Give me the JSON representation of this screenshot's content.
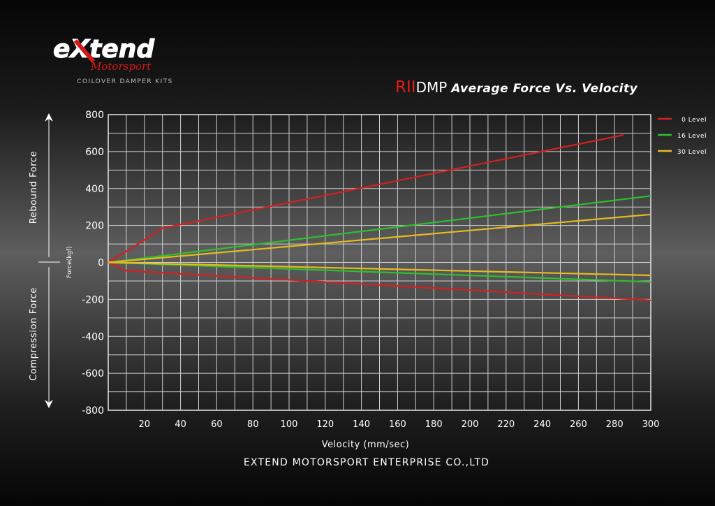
{
  "brand": {
    "logo_word": "eXtend",
    "logo_script": "Motorsport",
    "tagline": "COILOVER DAMPER KITS"
  },
  "title": {
    "prefix": "RII",
    "model": "DMP",
    "main": "Average Force Vs. Velocity"
  },
  "side_labels": {
    "rebound": "Rebound Force",
    "compression": "Compression Force"
  },
  "footer": "EXTEND MOTORSPORT ENTERPRISE CO.,LTD",
  "chart_data": {
    "type": "line",
    "title": "Average Force Vs. Velocity",
    "xlabel": "Velocity (mm/sec)",
    "ylabel": "Force(kgf)",
    "xlim": [
      0,
      300
    ],
    "ylim": [
      -800,
      800
    ],
    "x_ticks": [
      20,
      40,
      60,
      80,
      100,
      120,
      140,
      160,
      180,
      200,
      220,
      240,
      260,
      280,
      300
    ],
    "y_ticks": [
      800,
      600,
      400,
      200,
      0,
      -200,
      -400,
      -600,
      -800
    ],
    "grid": true,
    "legend_position": "right",
    "series": [
      {
        "name": "0 Level",
        "color": "#d42020",
        "branch": "rebound",
        "points": [
          [
            0,
            0
          ],
          [
            10,
            60
          ],
          [
            30,
            185
          ],
          [
            285,
            690
          ]
        ]
      },
      {
        "name": "0 Level",
        "color": "#d42020",
        "branch": "compression",
        "points": [
          [
            0,
            0
          ],
          [
            10,
            -45
          ],
          [
            300,
            -205
          ]
        ]
      },
      {
        "name": "16 Level",
        "color": "#2ec02e",
        "branch": "rebound",
        "points": [
          [
            0,
            0
          ],
          [
            300,
            360
          ]
        ]
      },
      {
        "name": "16 Level",
        "color": "#2ec02e",
        "branch": "compression",
        "points": [
          [
            0,
            0
          ],
          [
            300,
            -105
          ]
        ]
      },
      {
        "name": "30 Level",
        "color": "#e6bb1e",
        "branch": "rebound",
        "points": [
          [
            0,
            0
          ],
          [
            300,
            260
          ]
        ]
      },
      {
        "name": "30 Level",
        "color": "#e6bb1e",
        "branch": "compression",
        "points": [
          [
            0,
            0
          ],
          [
            300,
            -70
          ]
        ]
      }
    ],
    "legend": [
      {
        "name": "0 Level",
        "color": "#d42020"
      },
      {
        "name": "16 Level",
        "color": "#2ec02e"
      },
      {
        "name": "30 Level",
        "color": "#e6bb1e"
      }
    ]
  }
}
